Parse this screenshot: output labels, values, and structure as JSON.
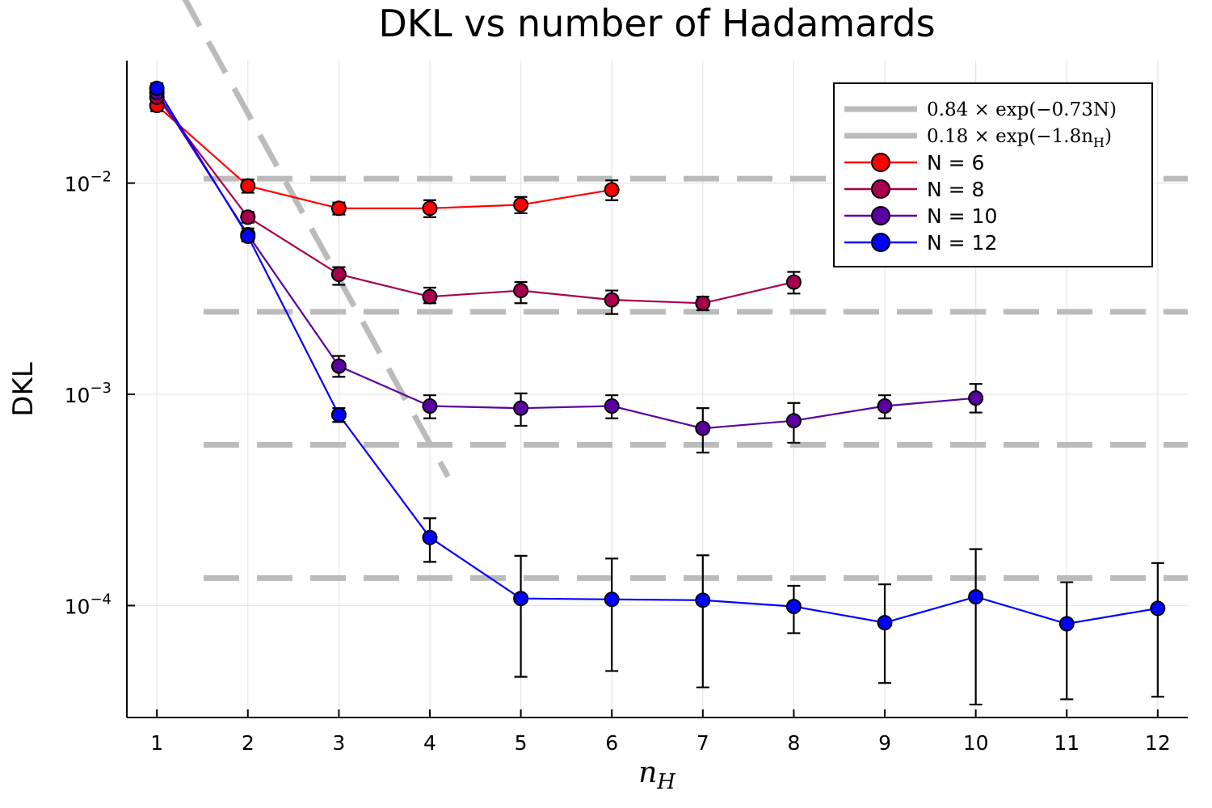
{
  "chart_data": {
    "type": "scatter",
    "title": "DKL vs number of Hadamards",
    "xlabel": "n_H",
    "ylabel": "DKL",
    "xlim": [
      0.67,
      12.33
    ],
    "ylim_log10": [
      -4.53,
      -1.42
    ],
    "y_scale": "log",
    "x_ticks": [
      1,
      2,
      3,
      4,
      5,
      6,
      7,
      8,
      9,
      10,
      11,
      12
    ],
    "y_ticks": [
      0.01,
      0.001,
      0.0001
    ],
    "y_tick_labels": [
      {
        "base": "10",
        "exp": "−2"
      },
      {
        "base": "10",
        "exp": "−3"
      },
      {
        "base": "10",
        "exp": "−4"
      }
    ],
    "grid": true,
    "legend_position": "top-right",
    "reference_lines": [
      {
        "name": "0.84 × exp(−0.73N)",
        "kind": "horizontal",
        "color": "#bbbbbb",
        "y_values": [
          0.0105,
          0.00246,
          0.000577,
          0.000135
        ]
      },
      {
        "name": "0.18 × exp(−1.8n_H)",
        "kind": "curve",
        "color": "#bbbbbb",
        "x_range": [
          1,
          4.2
        ]
      }
    ],
    "series": [
      {
        "name": "N = 6",
        "color": "#ff0000",
        "x": [
          1,
          2,
          3,
          4,
          5,
          6
        ],
        "y": [
          0.0233,
          0.0097,
          0.0076,
          0.0076,
          0.0079,
          0.0093
        ],
        "err_low": [
          0.0219,
          0.009,
          0.0071,
          0.0069,
          0.0072,
          0.0083
        ],
        "err_high": [
          0.0247,
          0.0104,
          0.0081,
          0.0083,
          0.0086,
          0.0103
        ]
      },
      {
        "name": "N = 8",
        "color": "#a8004f",
        "x": [
          1,
          2,
          3,
          4,
          5,
          6,
          7,
          8
        ],
        "y": [
          0.0255,
          0.0069,
          0.0037,
          0.0029,
          0.0031,
          0.0028,
          0.0027,
          0.0034
        ],
        "err_low": [
          0.024,
          0.0065,
          0.0033,
          0.0027,
          0.0027,
          0.0024,
          0.0025,
          0.003
        ],
        "err_high": [
          0.027,
          0.0073,
          0.004,
          0.0032,
          0.0034,
          0.0031,
          0.0029,
          0.0038
        ]
      },
      {
        "name": "N = 10",
        "color": "#5a00a0",
        "x": [
          1,
          2,
          3,
          4,
          5,
          6,
          7,
          8,
          9,
          10
        ],
        "y": [
          0.0268,
          0.0057,
          0.00136,
          0.00088,
          0.00086,
          0.00088,
          0.00069,
          0.00075,
          0.00088,
          0.00096
        ],
        "err_low": [
          0.0252,
          0.0053,
          0.00121,
          0.00077,
          0.00071,
          0.00077,
          0.00053,
          0.00059,
          0.00077,
          0.00082
        ],
        "err_high": [
          0.0284,
          0.0061,
          0.00152,
          0.00099,
          0.00101,
          0.00099,
          0.00086,
          0.00091,
          0.00099,
          0.00112
        ]
      },
      {
        "name": "N = 12",
        "color": "#0000ff",
        "x": [
          1,
          2,
          3,
          4,
          5,
          6,
          7,
          8,
          9,
          10,
          11,
          12
        ],
        "y": [
          0.0281,
          0.0056,
          0.0008,
          0.00021,
          0.000108,
          0.000107,
          0.000106,
          9.9e-05,
          8.3e-05,
          0.00011,
          8.2e-05,
          9.7e-05
        ],
        "err_low": [
          0.0265,
          0.0053,
          0.00074,
          0.000161,
          4.6e-05,
          4.9e-05,
          4.1e-05,
          7.4e-05,
          4.3e-05,
          3.4e-05,
          3.6e-05,
          3.7e-05
        ],
        "err_high": [
          0.0297,
          0.0059,
          0.00086,
          0.000259,
          0.000172,
          0.000167,
          0.000173,
          0.000124,
          0.000126,
          0.000185,
          0.000129,
          0.000159
        ]
      }
    ]
  }
}
